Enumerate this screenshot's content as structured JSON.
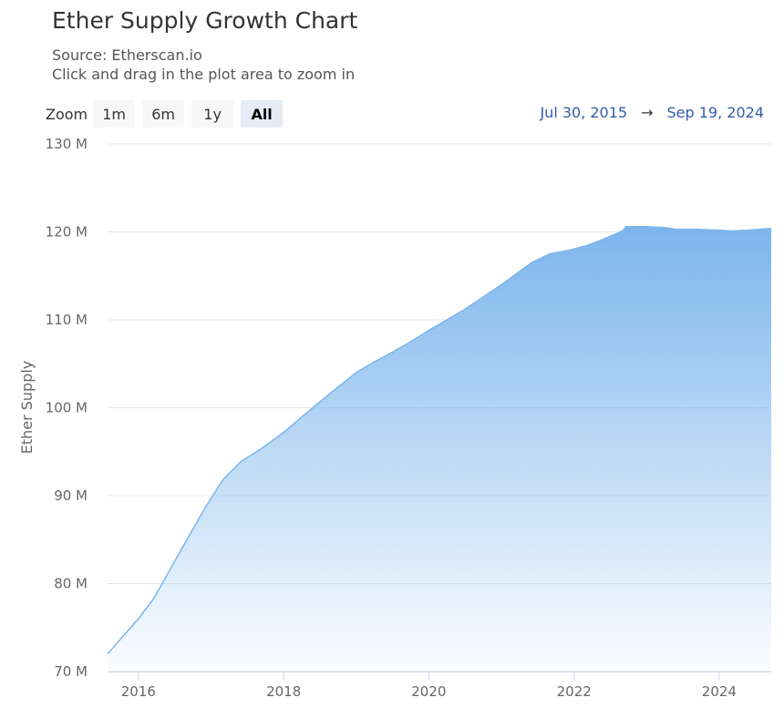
{
  "title": "Ether Supply Growth Chart",
  "subtitle_source": "Source: Etherscan.io",
  "subtitle_hint": "Click and drag in the plot area to zoom in",
  "zoom": {
    "label": "Zoom",
    "buttons": [
      "1m",
      "6m",
      "1y",
      "All"
    ],
    "active": "All"
  },
  "range": {
    "from": "Jul 30, 2015",
    "arrow": "→",
    "to": "Sep 19, 2024"
  },
  "colors": {
    "line": "#7cb5ec",
    "fill_top": "#7cb5ec",
    "grid": "#e6e6e6",
    "axis_text": "#666666",
    "link": "#335cad"
  },
  "chart_data": {
    "type": "area",
    "title": "Ether Supply Growth Chart",
    "subtitle": "Source: Etherscan.io",
    "ylabel": "Ether Supply",
    "xlabel": "",
    "ylim": [
      70000000,
      130000000
    ],
    "yticks": [
      70000000,
      80000000,
      90000000,
      100000000,
      110000000,
      120000000,
      130000000
    ],
    "ytick_labels": [
      "70 M",
      "80 M",
      "90 M",
      "100 M",
      "110 M",
      "120 M",
      "130 M"
    ],
    "xlim": [
      "2015-07-30",
      "2024-09-19"
    ],
    "xticks": [
      "2016-01-01",
      "2018-01-01",
      "2020-01-01",
      "2022-01-01",
      "2024-01-01"
    ],
    "xtick_labels": [
      "2016",
      "2018",
      "2020",
      "2022",
      "2024"
    ],
    "grid": true,
    "legend": "none",
    "series": [
      {
        "points": [
          [
            "2015-07-30",
            72.0
          ],
          [
            "2016-01-01",
            76.0
          ],
          [
            "2016-03-15",
            78.2
          ],
          [
            "2016-06-01",
            81.3
          ],
          [
            "2016-09-01",
            85.0
          ],
          [
            "2016-12-01",
            88.6
          ],
          [
            "2017-03-01",
            91.8
          ],
          [
            "2017-06-01",
            93.9
          ],
          [
            "2017-09-01",
            95.2
          ],
          [
            "2018-01-01",
            97.2
          ],
          [
            "2018-05-01",
            99.5
          ],
          [
            "2018-09-01",
            101.8
          ],
          [
            "2019-01-01",
            104.0
          ],
          [
            "2019-04-01",
            105.2
          ],
          [
            "2019-07-01",
            106.3
          ],
          [
            "2019-10-01",
            107.5
          ],
          [
            "2020-01-01",
            108.8
          ],
          [
            "2020-07-01",
            111.2
          ],
          [
            "2021-01-01",
            114.0
          ],
          [
            "2021-06-01",
            116.5
          ],
          [
            "2021-09-01",
            117.5
          ],
          [
            "2021-12-01",
            117.9
          ],
          [
            "2022-03-01",
            118.4
          ],
          [
            "2022-06-01",
            119.2
          ],
          [
            "2022-09-01",
            120.1
          ],
          [
            "2022-09-20",
            120.6
          ],
          [
            "2023-01-01",
            120.6
          ],
          [
            "2023-04-01",
            120.5
          ],
          [
            "2023-06-01",
            120.3
          ],
          [
            "2023-09-01",
            120.3
          ],
          [
            "2024-01-01",
            120.2
          ],
          [
            "2024-03-01",
            120.1
          ],
          [
            "2024-06-01",
            120.2
          ],
          [
            "2024-09-19",
            120.4
          ]
        ]
      }
    ]
  }
}
